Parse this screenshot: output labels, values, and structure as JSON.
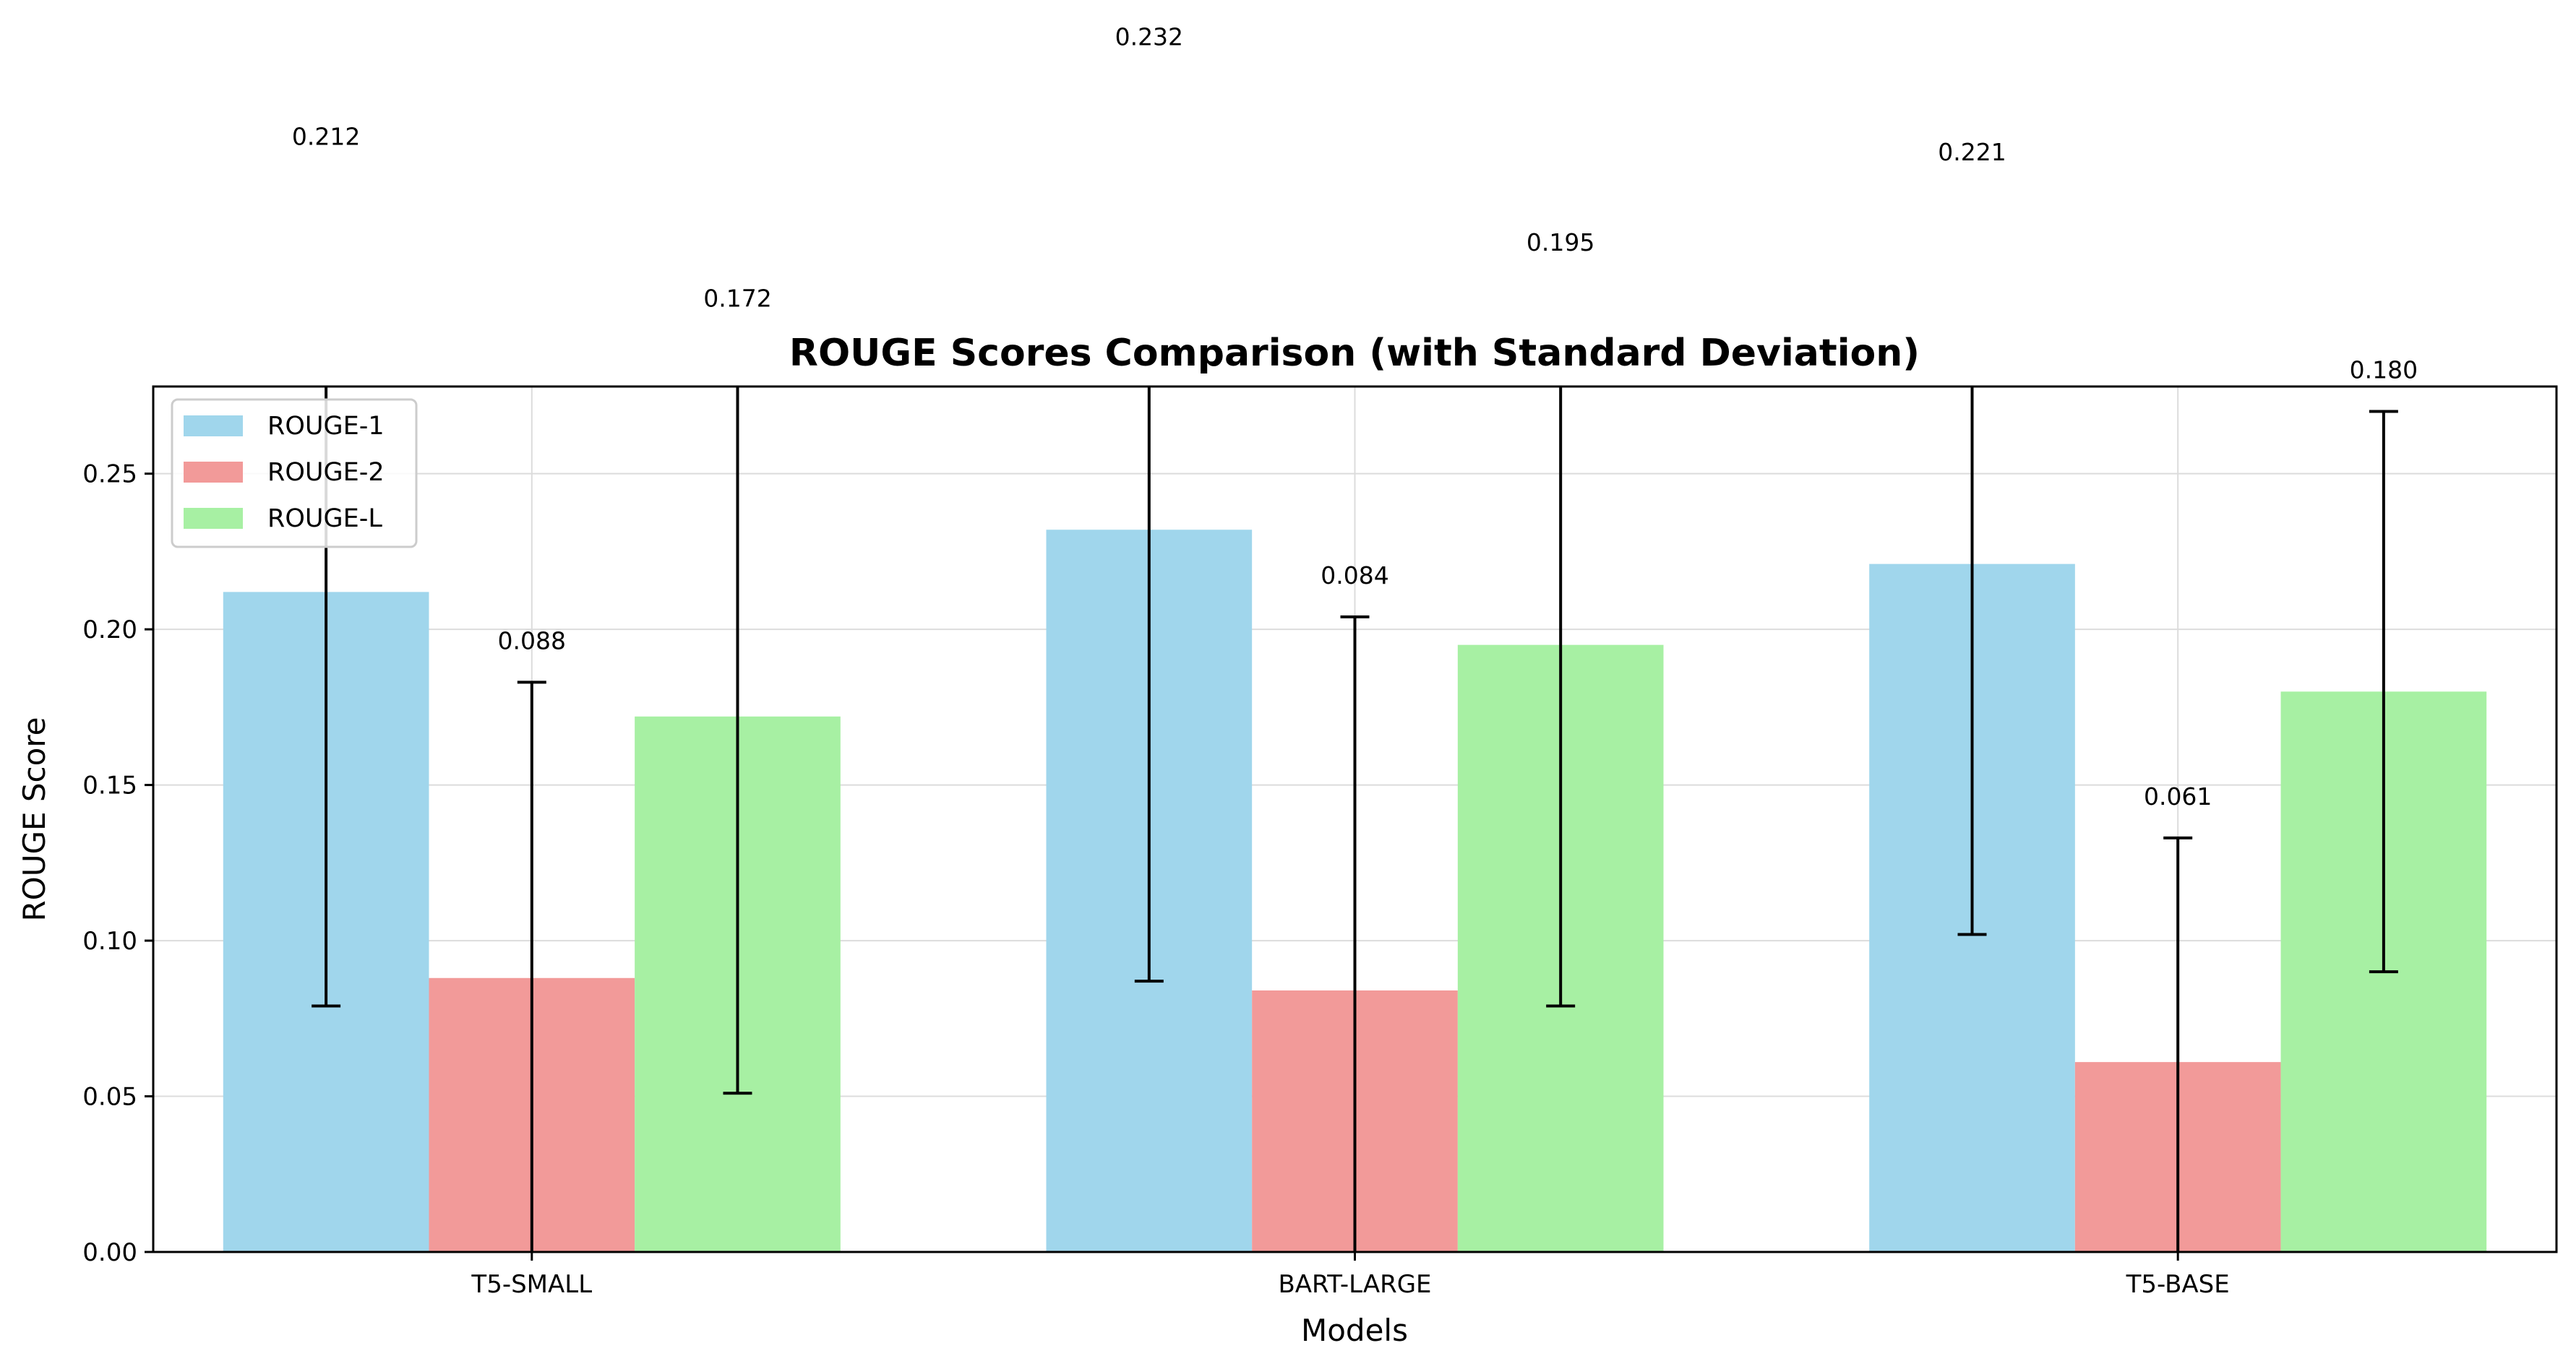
{
  "chart_data": {
    "type": "bar",
    "title": "ROUGE Scores Comparison (with Standard Deviation)",
    "xlabel": "Models",
    "ylabel": "ROUGE Score",
    "categories": [
      "T5-SMALL",
      "BART-LARGE",
      "T5-BASE"
    ],
    "series": [
      {
        "name": "ROUGE-1",
        "color": "#a0d6ec",
        "values": [
          0.212,
          0.232,
          0.221
        ],
        "std": [
          0.133,
          0.145,
          0.119
        ],
        "labels": [
          "0.212",
          "0.232",
          "0.221"
        ]
      },
      {
        "name": "ROUGE-2",
        "color": "#f29a99",
        "values": [
          0.088,
          0.084,
          0.061
        ],
        "std": [
          0.095,
          0.12,
          0.072
        ],
        "labels": [
          "0.088",
          "0.084",
          "0.061"
        ]
      },
      {
        "name": "ROUGE-L",
        "color": "#a7f0a3",
        "values": [
          0.172,
          0.195,
          0.18
        ],
        "std": [
          0.121,
          0.116,
          0.09
        ],
        "labels": [
          "0.172",
          "0.195",
          "0.180"
        ]
      }
    ],
    "ylim": [
      0,
      0.278
    ],
    "yticks": [
      0.0,
      0.05,
      0.1,
      0.15,
      0.2,
      0.25
    ],
    "ytick_labels": [
      "0.00",
      "0.05",
      "0.10",
      "0.15",
      "0.20",
      "0.25"
    ],
    "grid": true,
    "legend_position": "top-left"
  }
}
